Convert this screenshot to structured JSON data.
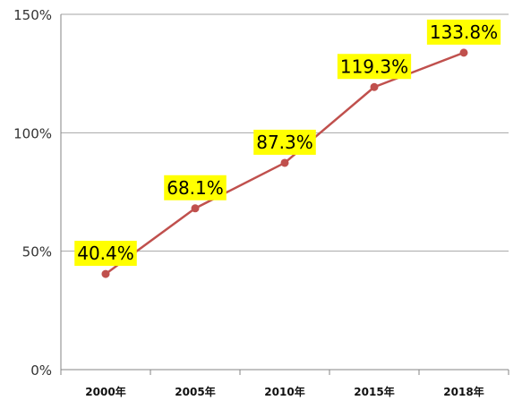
{
  "chart_data": {
    "type": "line",
    "categories": [
      "2000年",
      "2005年",
      "2010年",
      "2015年",
      "2018年"
    ],
    "series": [
      {
        "values": [
          40.4,
          68.1,
          87.3,
          119.3,
          133.8
        ],
        "data_labels": [
          "40.4%",
          "68.1%",
          "87.3%",
          "119.3%",
          "133.8%"
        ],
        "color": "#c0504d",
        "label_bg": "#ffff00"
      }
    ],
    "yticks": [
      0,
      50,
      100,
      150
    ],
    "ytick_labels": [
      "0%",
      "50%",
      "100%",
      "150%"
    ],
    "ylim": [
      0,
      150
    ],
    "grid": true,
    "legend": "none",
    "gridline_color": "#a6a6a6"
  }
}
